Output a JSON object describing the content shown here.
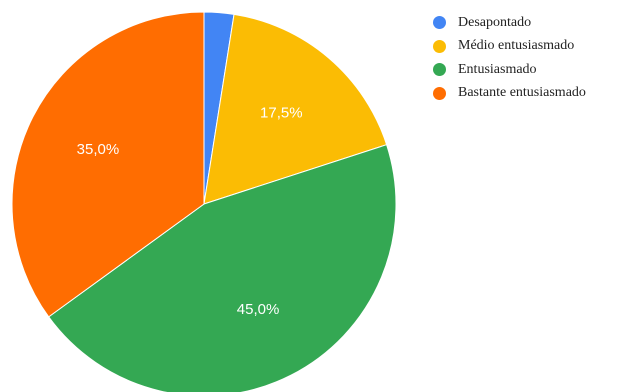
{
  "chart_data": {
    "type": "pie",
    "start_angle_deg": 0,
    "slices": [
      {
        "name": "Desapontado",
        "value": 2.5,
        "color": "#4285F4",
        "label": ""
      },
      {
        "name": "Médio entusiasmado",
        "value": 17.5,
        "color": "#FBBC04",
        "label": "17,5%"
      },
      {
        "name": "Entusiasmado",
        "value": 45.0,
        "color": "#34A853",
        "label": "45,0%"
      },
      {
        "name": "Bastante entusiasmado",
        "value": 35.0,
        "color": "#FF6D01",
        "label": "35,0%"
      }
    ],
    "legend_position": "right"
  }
}
